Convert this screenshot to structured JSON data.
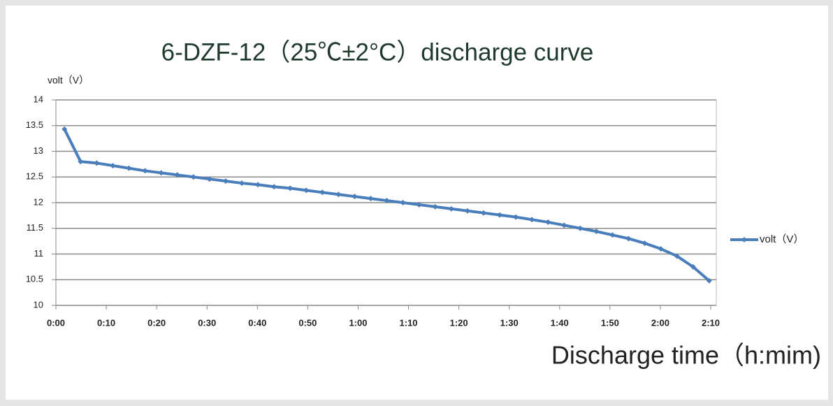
{
  "chart_data": {
    "type": "line",
    "title": "6-DZF-12（25℃±2°C）discharge curve",
    "y_label": "volt（V）",
    "x_label": "Discharge time（h:mim)",
    "x": [
      1.7,
      4.9,
      8.1,
      11.3,
      14.5,
      17.7,
      20.9,
      24.1,
      27.3,
      30.5,
      33.7,
      36.9,
      40.1,
      43.3,
      46.5,
      49.7,
      52.9,
      56.1,
      59.3,
      62.5,
      65.7,
      68.9,
      72.1,
      75.3,
      78.5,
      81.7,
      84.9,
      88.1,
      91.3,
      94.5,
      97.7,
      100.9,
      104.1,
      107.3,
      110.5,
      113.7,
      116.9,
      120.1,
      123.3,
      126.5,
      129.7
    ],
    "series": [
      {
        "name": "volt（V）",
        "color": "#4a7ebb",
        "values": [
          13.43,
          12.8,
          12.77,
          12.72,
          12.67,
          12.62,
          12.58,
          12.54,
          12.5,
          12.46,
          12.42,
          12.38,
          12.35,
          12.31,
          12.28,
          12.24,
          12.2,
          12.16,
          12.12,
          12.08,
          12.04,
          12.0,
          11.96,
          11.92,
          11.88,
          11.84,
          11.8,
          11.76,
          11.72,
          11.67,
          11.62,
          11.56,
          11.5,
          11.44,
          11.37,
          11.3,
          11.21,
          11.1,
          10.96,
          10.75,
          10.48
        ]
      }
    ],
    "xlim": [
      0,
      130
    ],
    "xticks": [
      {
        "value": 0,
        "label": "0:00"
      },
      {
        "value": 10,
        "label": "0:10"
      },
      {
        "value": 20,
        "label": "0:20"
      },
      {
        "value": 30,
        "label": "0:30"
      },
      {
        "value": 40,
        "label": "0:40"
      },
      {
        "value": 50,
        "label": "0:50"
      },
      {
        "value": 60,
        "label": "1:00"
      },
      {
        "value": 70,
        "label": "1:10"
      },
      {
        "value": 80,
        "label": "1:20"
      },
      {
        "value": 90,
        "label": "1:30"
      },
      {
        "value": 100,
        "label": "1:40"
      },
      {
        "value": 110,
        "label": "1:50"
      },
      {
        "value": 120,
        "label": "2:00"
      },
      {
        "value": 130,
        "label": "2:10"
      }
    ],
    "ylim": [
      10,
      14
    ],
    "yticks": [
      10,
      10.5,
      11,
      11.5,
      12,
      12.5,
      13,
      13.5,
      14
    ],
    "grid": true,
    "legend": "right"
  }
}
